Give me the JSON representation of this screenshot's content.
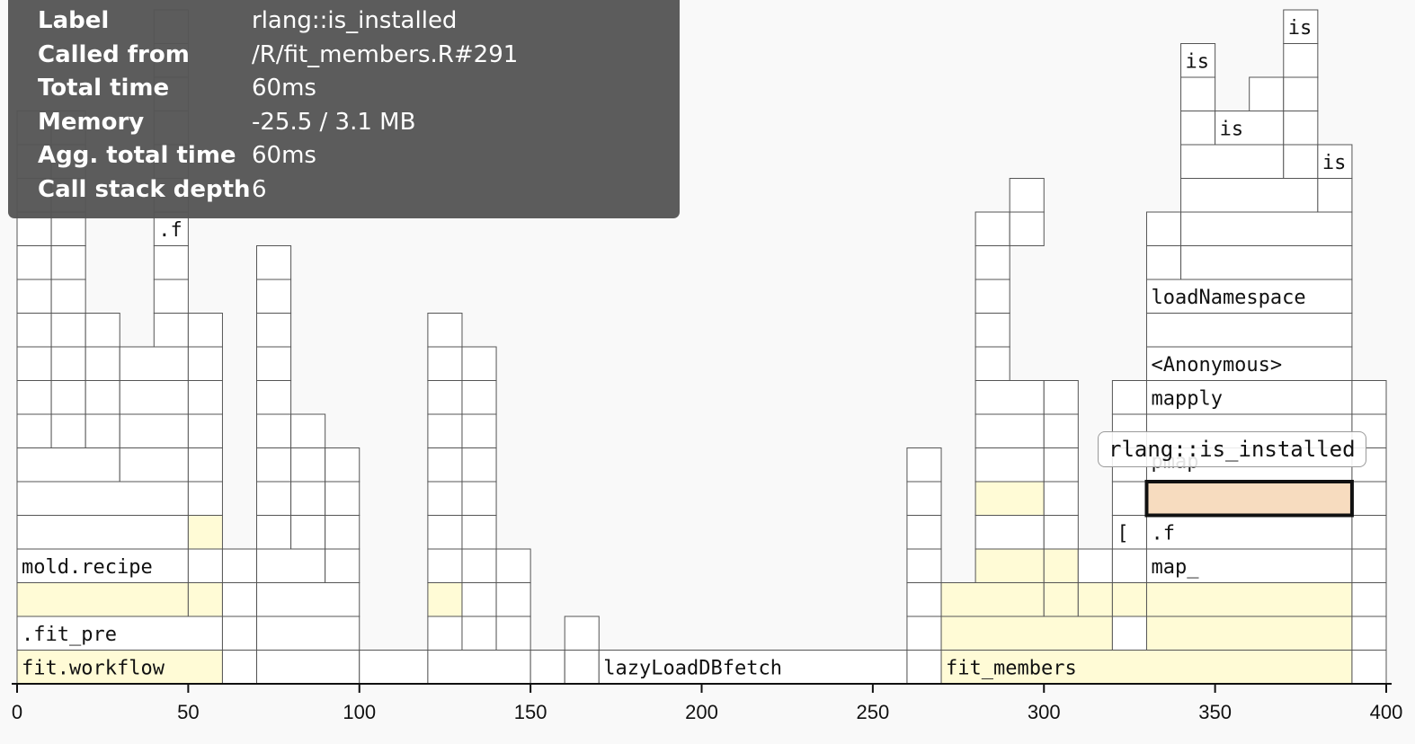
{
  "chart_data": {
    "type": "flamegraph",
    "title": "",
    "xlabel": "",
    "ylabel": "",
    "xlim": [
      0,
      400
    ],
    "x_ticks": [
      "0",
      "50",
      "100",
      "150",
      "200",
      "250",
      "300",
      "350",
      "400"
    ],
    "colors": {
      "default": "#ffffff",
      "highlight": "#fffbd6",
      "selected": "#f7dcbf",
      "border": "#555555"
    },
    "frames": [
      {
        "s": 0,
        "e": 60,
        "d": 0,
        "label": "fit.workflow",
        "hl": true
      },
      {
        "s": 60,
        "e": 70,
        "d": 0
      },
      {
        "s": 70,
        "e": 100,
        "d": 0
      },
      {
        "s": 100,
        "e": 120,
        "d": 0
      },
      {
        "s": 120,
        "e": 150,
        "d": 0
      },
      {
        "s": 150,
        "e": 160,
        "d": 0
      },
      {
        "s": 160,
        "e": 170,
        "d": 0
      },
      {
        "s": 170,
        "e": 260,
        "d": 0,
        "label": "lazyLoadDBfetch"
      },
      {
        "s": 260,
        "e": 270,
        "d": 0
      },
      {
        "s": 270,
        "e": 390,
        "d": 0,
        "label": "fit_members",
        "hl": true
      },
      {
        "s": 390,
        "e": 400,
        "d": 0
      },
      {
        "s": 0,
        "e": 60,
        "d": 1,
        "label": ".fit_pre"
      },
      {
        "s": 60,
        "e": 70,
        "d": 1
      },
      {
        "s": 70,
        "e": 100,
        "d": 1
      },
      {
        "s": 120,
        "e": 130,
        "d": 1
      },
      {
        "s": 130,
        "e": 140,
        "d": 1
      },
      {
        "s": 140,
        "e": 150,
        "d": 1
      },
      {
        "s": 160,
        "e": 170,
        "d": 1
      },
      {
        "s": 260,
        "e": 270,
        "d": 1
      },
      {
        "s": 270,
        "e": 320,
        "d": 1,
        "hl": true
      },
      {
        "s": 320,
        "e": 330,
        "d": 1
      },
      {
        "s": 330,
        "e": 390,
        "d": 1,
        "hl": true
      },
      {
        "s": 390,
        "e": 400,
        "d": 1
      },
      {
        "s": 0,
        "e": 50,
        "d": 2,
        "hl": true
      },
      {
        "s": 50,
        "e": 60,
        "d": 2,
        "hl": true
      },
      {
        "s": 60,
        "e": 70,
        "d": 2
      },
      {
        "s": 70,
        "e": 100,
        "d": 2
      },
      {
        "s": 120,
        "e": 130,
        "d": 2,
        "hl": true
      },
      {
        "s": 130,
        "e": 140,
        "d": 2
      },
      {
        "s": 140,
        "e": 150,
        "d": 2
      },
      {
        "s": 260,
        "e": 270,
        "d": 2
      },
      {
        "s": 270,
        "e": 300,
        "d": 2,
        "hl": true
      },
      {
        "s": 300,
        "e": 310,
        "d": 2,
        "hl": true
      },
      {
        "s": 310,
        "e": 320,
        "d": 2,
        "hl": true
      },
      {
        "s": 320,
        "e": 330,
        "d": 2,
        "hl": true
      },
      {
        "s": 330,
        "e": 390,
        "d": 2,
        "hl": true
      },
      {
        "s": 390,
        "e": 400,
        "d": 2
      },
      {
        "s": 0,
        "e": 50,
        "d": 3,
        "label": "mold.recipe"
      },
      {
        "s": 50,
        "e": 60,
        "d": 3
      },
      {
        "s": 60,
        "e": 70,
        "d": 3
      },
      {
        "s": 70,
        "e": 90,
        "d": 3
      },
      {
        "s": 90,
        "e": 100,
        "d": 3
      },
      {
        "s": 120,
        "e": 130,
        "d": 3
      },
      {
        "s": 130,
        "e": 140,
        "d": 3
      },
      {
        "s": 140,
        "e": 150,
        "d": 3
      },
      {
        "s": 260,
        "e": 270,
        "d": 3
      },
      {
        "s": 280,
        "e": 300,
        "d": 3,
        "hl": true
      },
      {
        "s": 300,
        "e": 310,
        "d": 3,
        "hl": true
      },
      {
        "s": 310,
        "e": 320,
        "d": 3
      },
      {
        "s": 320,
        "e": 330,
        "d": 3
      },
      {
        "s": 330,
        "e": 390,
        "d": 3,
        "label": "map_"
      },
      {
        "s": 390,
        "e": 400,
        "d": 3
      },
      {
        "s": 0,
        "e": 50,
        "d": 4
      },
      {
        "s": 50,
        "e": 60,
        "d": 4,
        "hl": true
      },
      {
        "s": 70,
        "e": 80,
        "d": 4
      },
      {
        "s": 80,
        "e": 90,
        "d": 4
      },
      {
        "s": 90,
        "e": 100,
        "d": 4
      },
      {
        "s": 120,
        "e": 130,
        "d": 4
      },
      {
        "s": 130,
        "e": 140,
        "d": 4
      },
      {
        "s": 260,
        "e": 270,
        "d": 4
      },
      {
        "s": 280,
        "e": 300,
        "d": 4
      },
      {
        "s": 300,
        "e": 310,
        "d": 4
      },
      {
        "s": 320,
        "e": 330,
        "d": 4,
        "label": "["
      },
      {
        "s": 330,
        "e": 390,
        "d": 4,
        "label": ".f"
      },
      {
        "s": 390,
        "e": 400,
        "d": 4
      },
      {
        "s": 0,
        "e": 50,
        "d": 5
      },
      {
        "s": 50,
        "e": 60,
        "d": 5
      },
      {
        "s": 70,
        "e": 80,
        "d": 5
      },
      {
        "s": 80,
        "e": 90,
        "d": 5
      },
      {
        "s": 90,
        "e": 100,
        "d": 5
      },
      {
        "s": 120,
        "e": 130,
        "d": 5
      },
      {
        "s": 130,
        "e": 140,
        "d": 5
      },
      {
        "s": 260,
        "e": 270,
        "d": 5
      },
      {
        "s": 280,
        "e": 300,
        "d": 5,
        "hl": true
      },
      {
        "s": 300,
        "e": 310,
        "d": 5
      },
      {
        "s": 320,
        "e": 330,
        "d": 5
      },
      {
        "s": 330,
        "e": 390,
        "d": 5,
        "sel": true
      },
      {
        "s": 390,
        "e": 400,
        "d": 5
      },
      {
        "s": 0,
        "e": 30,
        "d": 6
      },
      {
        "s": 30,
        "e": 50,
        "d": 6
      },
      {
        "s": 50,
        "e": 60,
        "d": 6
      },
      {
        "s": 70,
        "e": 80,
        "d": 6
      },
      {
        "s": 80,
        "e": 90,
        "d": 6
      },
      {
        "s": 90,
        "e": 100,
        "d": 6
      },
      {
        "s": 120,
        "e": 130,
        "d": 6
      },
      {
        "s": 130,
        "e": 140,
        "d": 6
      },
      {
        "s": 260,
        "e": 270,
        "d": 6
      },
      {
        "s": 280,
        "e": 300,
        "d": 6
      },
      {
        "s": 300,
        "e": 310,
        "d": 6
      },
      {
        "s": 320,
        "e": 330,
        "d": 6
      },
      {
        "s": 330,
        "e": 390,
        "d": 6,
        "label": "pmap"
      },
      {
        "s": 390,
        "e": 400,
        "d": 6
      },
      {
        "s": 0,
        "e": 10,
        "d": 7
      },
      {
        "s": 10,
        "e": 20,
        "d": 7
      },
      {
        "s": 20,
        "e": 30,
        "d": 7
      },
      {
        "s": 30,
        "e": 50,
        "d": 7
      },
      {
        "s": 50,
        "e": 60,
        "d": 7
      },
      {
        "s": 70,
        "e": 80,
        "d": 7
      },
      {
        "s": 80,
        "e": 90,
        "d": 7
      },
      {
        "s": 120,
        "e": 130,
        "d": 7
      },
      {
        "s": 130,
        "e": 140,
        "d": 7
      },
      {
        "s": 280,
        "e": 300,
        "d": 7
      },
      {
        "s": 300,
        "e": 310,
        "d": 7
      },
      {
        "s": 320,
        "e": 330,
        "d": 7
      },
      {
        "s": 330,
        "e": 390,
        "d": 7
      },
      {
        "s": 390,
        "e": 400,
        "d": 7
      },
      {
        "s": 0,
        "e": 10,
        "d": 8
      },
      {
        "s": 10,
        "e": 20,
        "d": 8
      },
      {
        "s": 20,
        "e": 30,
        "d": 8
      },
      {
        "s": 30,
        "e": 50,
        "d": 8
      },
      {
        "s": 50,
        "e": 60,
        "d": 8
      },
      {
        "s": 70,
        "e": 80,
        "d": 8
      },
      {
        "s": 120,
        "e": 130,
        "d": 8
      },
      {
        "s": 130,
        "e": 140,
        "d": 8
      },
      {
        "s": 280,
        "e": 300,
        "d": 8
      },
      {
        "s": 300,
        "e": 310,
        "d": 8
      },
      {
        "s": 320,
        "e": 330,
        "d": 8
      },
      {
        "s": 330,
        "e": 390,
        "d": 8,
        "label": "mapply"
      },
      {
        "s": 390,
        "e": 400,
        "d": 8
      },
      {
        "s": 0,
        "e": 10,
        "d": 9
      },
      {
        "s": 10,
        "e": 20,
        "d": 9
      },
      {
        "s": 20,
        "e": 30,
        "d": 9
      },
      {
        "s": 30,
        "e": 50,
        "d": 9
      },
      {
        "s": 50,
        "e": 60,
        "d": 9
      },
      {
        "s": 70,
        "e": 80,
        "d": 9
      },
      {
        "s": 120,
        "e": 130,
        "d": 9
      },
      {
        "s": 130,
        "e": 140,
        "d": 9
      },
      {
        "s": 280,
        "e": 290,
        "d": 9
      },
      {
        "s": 330,
        "e": 390,
        "d": 9,
        "label": "<Anonymous>"
      },
      {
        "s": 0,
        "e": 10,
        "d": 10
      },
      {
        "s": 10,
        "e": 20,
        "d": 10
      },
      {
        "s": 20,
        "e": 30,
        "d": 10
      },
      {
        "s": 40,
        "e": 50,
        "d": 10
      },
      {
        "s": 50,
        "e": 60,
        "d": 10
      },
      {
        "s": 70,
        "e": 80,
        "d": 10
      },
      {
        "s": 120,
        "e": 130,
        "d": 10
      },
      {
        "s": 280,
        "e": 290,
        "d": 10
      },
      {
        "s": 330,
        "e": 390,
        "d": 10
      },
      {
        "s": 0,
        "e": 10,
        "d": 11
      },
      {
        "s": 10,
        "e": 20,
        "d": 11
      },
      {
        "s": 40,
        "e": 50,
        "d": 11
      },
      {
        "s": 70,
        "e": 80,
        "d": 11
      },
      {
        "s": 280,
        "e": 290,
        "d": 11
      },
      {
        "s": 330,
        "e": 390,
        "d": 11,
        "label": "loadNamespace"
      },
      {
        "s": 0,
        "e": 10,
        "d": 12
      },
      {
        "s": 10,
        "e": 20,
        "d": 12
      },
      {
        "s": 40,
        "e": 50,
        "d": 12
      },
      {
        "s": 70,
        "e": 80,
        "d": 12
      },
      {
        "s": 280,
        "e": 290,
        "d": 12
      },
      {
        "s": 330,
        "e": 340,
        "d": 12
      },
      {
        "s": 340,
        "e": 390,
        "d": 12
      },
      {
        "s": 0,
        "e": 10,
        "d": 13
      },
      {
        "s": 10,
        "e": 20,
        "d": 13
      },
      {
        "s": 40,
        "e": 50,
        "d": 13,
        "label": ".f"
      },
      {
        "s": 280,
        "e": 290,
        "d": 13
      },
      {
        "s": 290,
        "e": 300,
        "d": 13
      },
      {
        "s": 330,
        "e": 340,
        "d": 13
      },
      {
        "s": 340,
        "e": 390,
        "d": 13
      },
      {
        "s": 0,
        "e": 10,
        "d": 14
      },
      {
        "s": 10,
        "e": 20,
        "d": 14
      },
      {
        "s": 40,
        "e": 50,
        "d": 14
      },
      {
        "s": 290,
        "e": 300,
        "d": 14
      },
      {
        "s": 340,
        "e": 380,
        "d": 14
      },
      {
        "s": 380,
        "e": 390,
        "d": 14
      },
      {
        "s": 0,
        "e": 10,
        "d": 15
      },
      {
        "s": 10,
        "e": 20,
        "d": 15
      },
      {
        "s": 40,
        "e": 50,
        "d": 15
      },
      {
        "s": 340,
        "e": 370,
        "d": 15
      },
      {
        "s": 370,
        "e": 380,
        "d": 15
      },
      {
        "s": 380,
        "e": 390,
        "d": 15,
        "label": "is"
      },
      {
        "s": 0,
        "e": 10,
        "d": 16
      },
      {
        "s": 10,
        "e": 20,
        "d": 16
      },
      {
        "s": 40,
        "e": 50,
        "d": 16
      },
      {
        "s": 340,
        "e": 350,
        "d": 16
      },
      {
        "s": 350,
        "e": 370,
        "d": 16,
        "label": "is"
      },
      {
        "s": 370,
        "e": 380,
        "d": 16
      },
      {
        "s": 40,
        "e": 50,
        "d": 17
      },
      {
        "s": 340,
        "e": 350,
        "d": 17
      },
      {
        "s": 360,
        "e": 370,
        "d": 17
      },
      {
        "s": 370,
        "e": 380,
        "d": 17
      },
      {
        "s": 40,
        "e": 50,
        "d": 18
      },
      {
        "s": 340,
        "e": 350,
        "d": 18,
        "label": "is"
      },
      {
        "s": 370,
        "e": 380,
        "d": 18
      },
      {
        "s": 40,
        "e": 50,
        "d": 19
      },
      {
        "s": 370,
        "e": 380,
        "d": 19,
        "label": "is"
      }
    ]
  },
  "tooltip": {
    "rows": [
      {
        "key": "Label",
        "value": "rlang::is_installed"
      },
      {
        "key": "Called from",
        "value": "/R/fit_members.R#291"
      },
      {
        "key": "Total time",
        "value": "60ms"
      },
      {
        "key": "Memory",
        "value": "-25.5 / 3.1 MB"
      },
      {
        "key": "Agg. total time",
        "value": "60ms"
      },
      {
        "key": "Call stack depth",
        "value": "6"
      }
    ]
  },
  "hover_label": "rlang::is_installed"
}
